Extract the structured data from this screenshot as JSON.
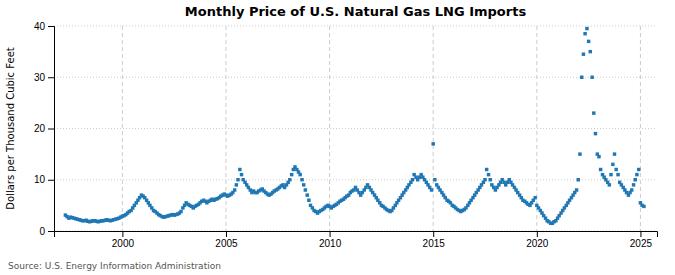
{
  "chart_data": {
    "type": "scatter",
    "title": "Monthly Price of U.S. Natural Gas LNG Imports",
    "ylabel": "Dollars per Thousand Cubic Feet",
    "annotations": [
      "Source: U.S. Energy Information Administration"
    ],
    "marker": "square",
    "grid": true,
    "xlim": [
      1996.7,
      2025.8
    ],
    "xticks": [
      2000,
      2005,
      2010,
      2015,
      2020,
      2025
    ],
    "ylim": [
      0,
      40
    ],
    "yticks": [
      0,
      10,
      20,
      30,
      40
    ],
    "x": [
      1997.25,
      1997.33,
      1997.42,
      1997.5,
      1997.58,
      1997.67,
      1997.75,
      1997.83,
      1997.92,
      1998.0,
      1998.08,
      1998.17,
      1998.25,
      1998.33,
      1998.42,
      1998.5,
      1998.58,
      1998.67,
      1998.75,
      1998.83,
      1998.92,
      1999.0,
      1999.08,
      1999.17,
      1999.25,
      1999.33,
      1999.42,
      1999.5,
      1999.58,
      1999.67,
      1999.75,
      1999.83,
      1999.92,
      2000.0,
      2000.08,
      2000.17,
      2000.25,
      2000.33,
      2000.42,
      2000.5,
      2000.58,
      2000.67,
      2000.75,
      2000.83,
      2000.92,
      2001.0,
      2001.08,
      2001.17,
      2001.25,
      2001.33,
      2001.42,
      2001.5,
      2001.58,
      2001.67,
      2001.75,
      2001.83,
      2001.92,
      2002.0,
      2002.08,
      2002.17,
      2002.25,
      2002.33,
      2002.42,
      2002.5,
      2002.58,
      2002.67,
      2002.75,
      2002.83,
      2002.92,
      2003.0,
      2003.08,
      2003.17,
      2003.25,
      2003.33,
      2003.42,
      2003.5,
      2003.58,
      2003.67,
      2003.75,
      2003.83,
      2003.92,
      2004.0,
      2004.08,
      2004.17,
      2004.25,
      2004.33,
      2004.42,
      2004.5,
      2004.58,
      2004.67,
      2004.75,
      2004.83,
      2004.92,
      2005.0,
      2005.08,
      2005.17,
      2005.25,
      2005.33,
      2005.42,
      2005.5,
      2005.58,
      2005.67,
      2005.75,
      2005.83,
      2005.92,
      2006.0,
      2006.08,
      2006.17,
      2006.25,
      2006.33,
      2006.42,
      2006.5,
      2006.58,
      2006.67,
      2006.75,
      2006.83,
      2006.92,
      2007.0,
      2007.08,
      2007.17,
      2007.25,
      2007.33,
      2007.42,
      2007.5,
      2007.58,
      2007.67,
      2007.75,
      2007.83,
      2007.92,
      2008.0,
      2008.08,
      2008.17,
      2008.25,
      2008.33,
      2008.42,
      2008.5,
      2008.58,
      2008.67,
      2008.75,
      2008.83,
      2008.92,
      2009.0,
      2009.08,
      2009.17,
      2009.25,
      2009.33,
      2009.42,
      2009.5,
      2009.58,
      2009.67,
      2009.75,
      2009.83,
      2009.92,
      2010.0,
      2010.08,
      2010.17,
      2010.25,
      2010.33,
      2010.42,
      2010.5,
      2010.58,
      2010.67,
      2010.75,
      2010.83,
      2010.92,
      2011.0,
      2011.08,
      2011.17,
      2011.25,
      2011.33,
      2011.42,
      2011.5,
      2011.58,
      2011.67,
      2011.75,
      2011.83,
      2011.92,
      2012.0,
      2012.08,
      2012.17,
      2012.25,
      2012.33,
      2012.42,
      2012.5,
      2012.58,
      2012.67,
      2012.75,
      2012.83,
      2012.92,
      2013.0,
      2013.08,
      2013.17,
      2013.25,
      2013.33,
      2013.42,
      2013.5,
      2013.58,
      2013.67,
      2013.75,
      2013.83,
      2013.92,
      2014.0,
      2014.08,
      2014.17,
      2014.25,
      2014.33,
      2014.42,
      2014.5,
      2014.58,
      2014.67,
      2014.75,
      2014.83,
      2014.92,
      2015.0,
      2015.08,
      2015.17,
      2015.25,
      2015.33,
      2015.42,
      2015.5,
      2015.58,
      2015.67,
      2015.75,
      2015.83,
      2015.92,
      2016.0,
      2016.08,
      2016.17,
      2016.25,
      2016.33,
      2016.42,
      2016.5,
      2016.58,
      2016.67,
      2016.75,
      2016.83,
      2016.92,
      2017.0,
      2017.08,
      2017.17,
      2017.25,
      2017.33,
      2017.42,
      2017.5,
      2017.58,
      2017.67,
      2017.75,
      2017.83,
      2017.92,
      2018.0,
      2018.08,
      2018.17,
      2018.25,
      2018.33,
      2018.42,
      2018.5,
      2018.58,
      2018.67,
      2018.75,
      2018.83,
      2018.92,
      2019.0,
      2019.08,
      2019.17,
      2019.25,
      2019.33,
      2019.42,
      2019.5,
      2019.58,
      2019.67,
      2019.75,
      2019.83,
      2019.92,
      2020.0,
      2020.08,
      2020.17,
      2020.25,
      2020.33,
      2020.42,
      2020.5,
      2020.58,
      2020.67,
      2020.75,
      2020.83,
      2020.92,
      2021.0,
      2021.08,
      2021.17,
      2021.25,
      2021.33,
      2021.42,
      2021.5,
      2021.58,
      2021.67,
      2021.75,
      2021.83,
      2021.92,
      2022.0,
      2022.08,
      2022.17,
      2022.25,
      2022.33,
      2022.42,
      2022.5,
      2022.58,
      2022.67,
      2022.75,
      2022.83,
      2022.92,
      2023.0,
      2023.08,
      2023.17,
      2023.25,
      2023.33,
      2023.42,
      2023.5,
      2023.58,
      2023.67,
      2023.75,
      2023.83,
      2023.92,
      2024.0,
      2024.08,
      2024.17,
      2024.25,
      2024.33,
      2024.42,
      2024.5,
      2024.58,
      2024.67,
      2024.75,
      2024.83,
      2024.92,
      2025.0,
      2025.08,
      2025.17
    ],
    "values": [
      3.1,
      2.8,
      2.5,
      2.7,
      2.6,
      2.5,
      2.4,
      2.3,
      2.2,
      2.1,
      2.0,
      2.0,
      2.1,
      1.9,
      1.8,
      1.9,
      2.0,
      2.0,
      1.9,
      1.8,
      1.9,
      2.0,
      2.0,
      2.1,
      2.2,
      2.1,
      2.0,
      2.1,
      2.2,
      2.3,
      2.4,
      2.5,
      2.7,
      2.9,
      3.0,
      3.2,
      3.5,
      3.8,
      4.0,
      4.5,
      5.0,
      5.5,
      6.0,
      6.5,
      7.0,
      6.8,
      6.5,
      6.0,
      5.5,
      5.0,
      4.5,
      4.0,
      3.8,
      3.5,
      3.2,
      3.0,
      2.8,
      2.7,
      2.8,
      2.9,
      3.0,
      3.1,
      3.2,
      3.1,
      3.2,
      3.3,
      3.5,
      3.8,
      4.5,
      5.0,
      5.5,
      5.2,
      5.0,
      4.8,
      4.5,
      4.8,
      5.0,
      5.2,
      5.5,
      5.8,
      6.0,
      5.8,
      5.5,
      5.8,
      6.0,
      6.2,
      6.0,
      6.2,
      6.3,
      6.5,
      6.8,
      7.0,
      7.2,
      7.0,
      6.8,
      7.0,
      7.2,
      7.5,
      8.0,
      9.0,
      10.0,
      12.0,
      11.0,
      10.0,
      9.5,
      9.0,
      8.5,
      8.0,
      7.5,
      7.8,
      7.5,
      7.5,
      7.8,
      8.0,
      8.2,
      7.8,
      7.5,
      7.2,
      7.0,
      7.2,
      7.5,
      7.8,
      8.0,
      8.2,
      8.5,
      8.8,
      9.0,
      8.5,
      9.0,
      9.5,
      10.0,
      11.0,
      12.0,
      12.5,
      12.0,
      11.5,
      11.0,
      10.0,
      9.0,
      8.0,
      7.0,
      6.0,
      5.0,
      4.5,
      4.0,
      3.8,
      3.5,
      3.8,
      4.0,
      4.2,
      4.5,
      4.8,
      5.0,
      4.8,
      4.5,
      4.8,
      5.0,
      5.2,
      5.5,
      5.8,
      6.0,
      6.2,
      6.5,
      6.8,
      7.0,
      7.5,
      7.8,
      8.0,
      8.5,
      8.0,
      7.5,
      7.0,
      7.5,
      8.0,
      8.5,
      9.0,
      8.5,
      8.0,
      7.5,
      7.0,
      6.5,
      6.0,
      5.5,
      5.0,
      4.8,
      4.5,
      4.2,
      4.0,
      3.8,
      4.0,
      4.5,
      5.0,
      5.5,
      6.0,
      6.5,
      7.0,
      7.5,
      8.0,
      8.5,
      9.0,
      9.5,
      10.0,
      11.0,
      10.5,
      10.0,
      10.5,
      11.0,
      10.5,
      10.0,
      9.5,
      9.0,
      8.5,
      8.0,
      17.0,
      10.0,
      9.0,
      8.5,
      8.0,
      7.5,
      7.0,
      6.5,
      6.0,
      5.8,
      5.5,
      5.0,
      4.8,
      4.5,
      4.2,
      4.0,
      3.8,
      4.0,
      4.2,
      4.5,
      5.0,
      5.5,
      6.0,
      6.5,
      7.0,
      7.5,
      8.0,
      8.5,
      9.0,
      9.5,
      10.0,
      12.0,
      11.0,
      10.0,
      9.0,
      8.5,
      8.0,
      8.5,
      9.0,
      9.5,
      10.0,
      9.5,
      9.0,
      9.5,
      10.0,
      9.5,
      9.0,
      8.5,
      8.0,
      7.5,
      7.0,
      6.5,
      6.0,
      5.8,
      5.5,
      5.2,
      5.0,
      5.5,
      6.0,
      6.5,
      5.0,
      4.5,
      4.0,
      3.5,
      3.0,
      2.5,
      2.0,
      1.8,
      1.5,
      1.5,
      1.8,
      2.0,
      2.5,
      3.0,
      3.5,
      4.0,
      4.5,
      5.0,
      5.5,
      6.0,
      6.5,
      7.0,
      7.5,
      8.0,
      10.0,
      15.0,
      30.0,
      34.5,
      38.5,
      39.5,
      37.0,
      35.0,
      30.0,
      23.0,
      19.0,
      15.0,
      14.5,
      12.0,
      11.0,
      10.5,
      10.0,
      9.5,
      9.0,
      11.0,
      13.0,
      15.0,
      12.0,
      11.0,
      9.5,
      9.0,
      8.5,
      8.0,
      7.5,
      7.0,
      7.5,
      8.0,
      9.0,
      10.0,
      11.0,
      12.0,
      5.5,
      5.0,
      4.8
    ]
  }
}
